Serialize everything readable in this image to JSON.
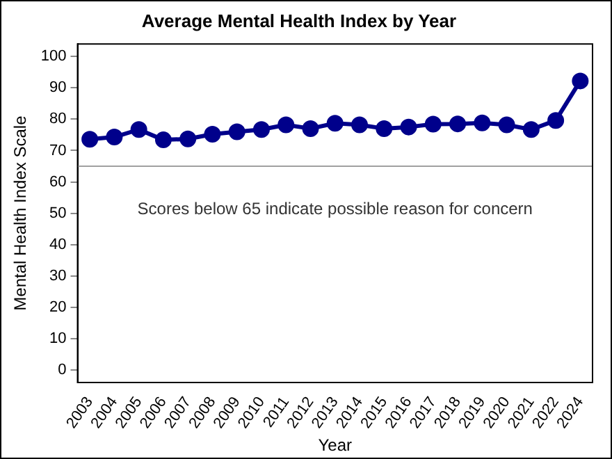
{
  "chart_data": {
    "type": "line",
    "title": "Average Mental Health Index by Year",
    "xlabel": "Year",
    "ylabel": "Mental Health Index Scale",
    "categories": [
      "2003",
      "2004",
      "2005",
      "2006",
      "2007",
      "2008",
      "2009",
      "2010",
      "2011",
      "2012",
      "2013",
      "2014",
      "2015",
      "2016",
      "2017",
      "2018",
      "2019",
      "2020",
      "2021",
      "2022",
      "2024"
    ],
    "series": [
      {
        "color": "#00008b",
        "values": [
          73.6,
          74.3,
          76.7,
          73.4,
          73.7,
          75.2,
          76,
          76.7,
          78.2,
          77,
          78.7,
          78.2,
          77,
          77.5,
          78.4,
          78.5,
          78.8,
          78.2,
          76.7,
          79.6,
          92.2
        ]
      }
    ],
    "ylim": [
      -4,
      104
    ],
    "yticks": [
      0,
      10,
      20,
      30,
      40,
      50,
      60,
      70,
      80,
      90,
      100
    ],
    "grid": false,
    "legend": false,
    "marker": "circle",
    "line_style": "solid",
    "ref_lines": [
      {
        "axis": "y",
        "value": 65,
        "color": "#a0a0a0"
      }
    ],
    "annotations": [
      "Scores below 65 indicate possible reason for concern"
    ]
  }
}
